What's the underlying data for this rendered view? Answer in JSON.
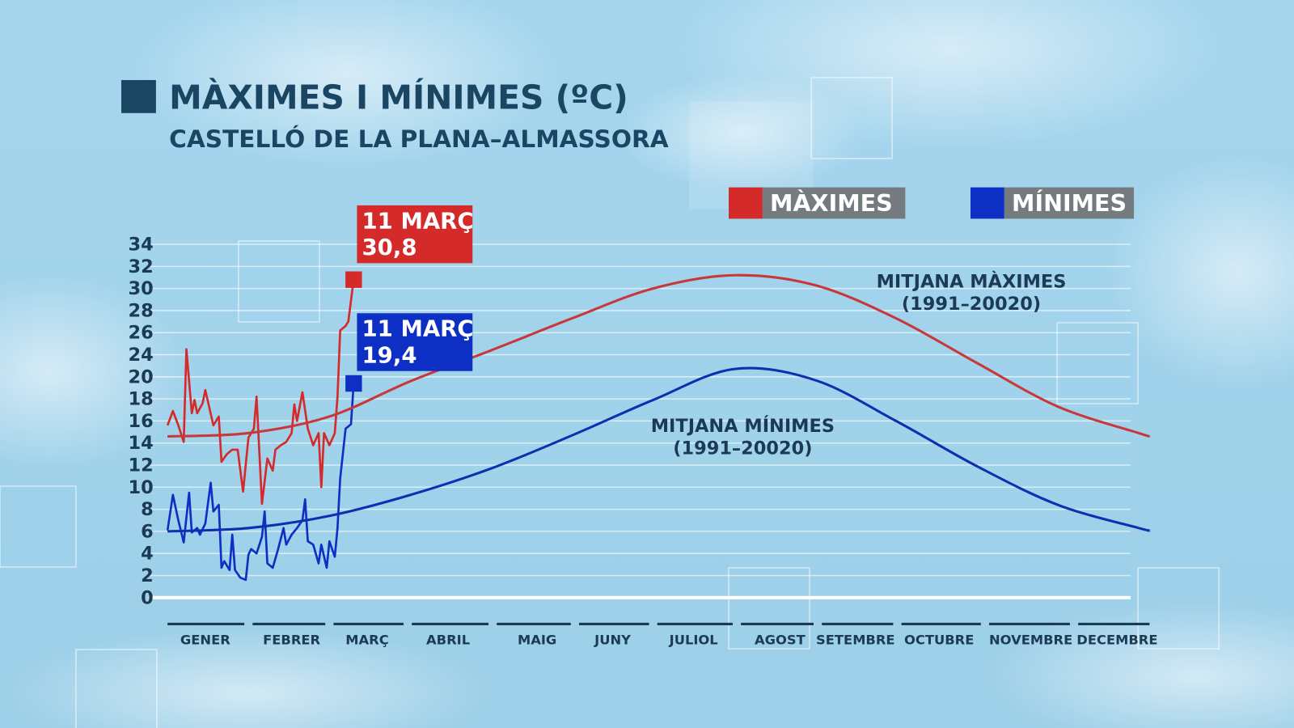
{
  "chart_data": {
    "type": "line",
    "title": "MÀXIMES I MÍNIMES (ºC)",
    "subtitle": "CASTELLÓ DE LA PLANA–ALMASSORA",
    "xlim": [
      1,
      365
    ],
    "xticks": [
      {
        "value": 15,
        "label": "GENER"
      },
      {
        "value": 47,
        "label": "FEBRER"
      },
      {
        "value": 75,
        "label": "MARÇ"
      },
      {
        "value": 105,
        "label": "ABRIL"
      },
      {
        "value": 138,
        "label": "MAIG"
      },
      {
        "value": 166,
        "label": "JUNY"
      },
      {
        "value": 196,
        "label": "JULIOL"
      },
      {
        "value": 228,
        "label": "AGOST"
      },
      {
        "value": 256,
        "label": "SETEMBRE"
      },
      {
        "value": 287,
        "label": "OCTUBRE"
      },
      {
        "value": 321,
        "label": "NOVEMBRE"
      },
      {
        "value": 353,
        "label": "DECEMBRE"
      }
    ],
    "ylim": [
      0,
      34
    ],
    "yticks": [
      0,
      2,
      4,
      6,
      8,
      10,
      12,
      14,
      16,
      18,
      20,
      24,
      26,
      28,
      30,
      32,
      34
    ],
    "grid": true,
    "series": [
      {
        "name": "MÀXIMES",
        "color": "#d42a2a",
        "legend": true,
        "x": [
          1,
          3,
          5,
          7,
          8,
          10,
          11,
          12,
          14,
          15,
          18,
          20,
          21,
          23,
          25,
          27,
          29,
          31,
          33,
          34,
          36,
          38,
          40,
          41,
          43,
          45,
          47,
          48,
          49,
          51,
          53,
          55,
          57,
          58,
          59,
          61,
          63,
          64,
          65,
          67,
          68,
          70
        ],
        "values": [
          15.6,
          16.9,
          15.6,
          14.1,
          24.5,
          16.7,
          17.9,
          16.7,
          17.6,
          18.8,
          15.6,
          16.4,
          12.3,
          13.0,
          13.4,
          13.4,
          9.6,
          14.5,
          15.3,
          18.2,
          8.5,
          12.6,
          11.5,
          13.4,
          13.8,
          14.1,
          14.9,
          17.5,
          16.0,
          18.6,
          15.3,
          13.8,
          14.9,
          10.0,
          14.9,
          13.8,
          14.9,
          18.2,
          26.2,
          26.6,
          27.0,
          30.8
        ]
      },
      {
        "name": "MÍNIMES",
        "color": "#0d2fc4",
        "legend": true,
        "x": [
          1,
          3,
          5,
          7,
          9,
          10,
          12,
          13,
          15,
          17,
          18,
          20,
          21,
          22,
          24,
          25,
          26,
          28,
          30,
          31,
          32,
          34,
          36,
          37,
          38,
          40,
          42,
          44,
          45,
          47,
          49,
          51,
          52,
          53,
          55,
          57,
          58,
          60,
          61,
          63,
          64,
          65,
          67,
          69,
          70
        ],
        "values": [
          6.1,
          9.3,
          7.0,
          5.0,
          9.5,
          5.9,
          6.3,
          5.7,
          6.7,
          10.4,
          7.8,
          8.4,
          2.7,
          3.3,
          2.5,
          5.7,
          2.5,
          1.8,
          1.6,
          3.9,
          4.4,
          4.0,
          5.5,
          7.8,
          3.1,
          2.7,
          4.4,
          6.3,
          4.8,
          5.7,
          6.3,
          7.0,
          8.9,
          5.1,
          4.8,
          3.1,
          4.8,
          2.7,
          5.1,
          3.7,
          6.3,
          10.8,
          15.3,
          15.7,
          19.4
        ]
      },
      {
        "name": "MITJANA MÀXIMES",
        "period": "(1991–20020)",
        "color": "#c8383a",
        "smooth": true,
        "x": [
          1,
          31,
          61,
          91,
          121,
          151,
          181,
          211,
          241,
          271,
          301,
          331,
          361,
          365
        ],
        "values": [
          14.6,
          14.9,
          16.4,
          19.6,
          24.4,
          27.3,
          30.0,
          31.2,
          30.3,
          27.3,
          22.5,
          17.3,
          14.9,
          14.6
        ]
      },
      {
        "name": "MITJANA MÍNIMES",
        "period": "(1991–20020)",
        "color": "#0d2fb0",
        "smooth": true,
        "x": [
          1,
          31,
          61,
          91,
          121,
          151,
          181,
          211,
          241,
          271,
          301,
          331,
          361,
          365
        ],
        "values": [
          6.0,
          6.3,
          7.4,
          9.3,
          11.7,
          14.7,
          17.9,
          21.4,
          19.7,
          16.0,
          11.9,
          8.4,
          6.3,
          6.1
        ]
      }
    ],
    "annotations": [
      {
        "series": 0,
        "date": "11 MARÇ",
        "value": 30.8,
        "label": "30,8"
      },
      {
        "series": 1,
        "date": "11 MARÇ",
        "value": 19.4,
        "label": "19,4"
      }
    ]
  }
}
